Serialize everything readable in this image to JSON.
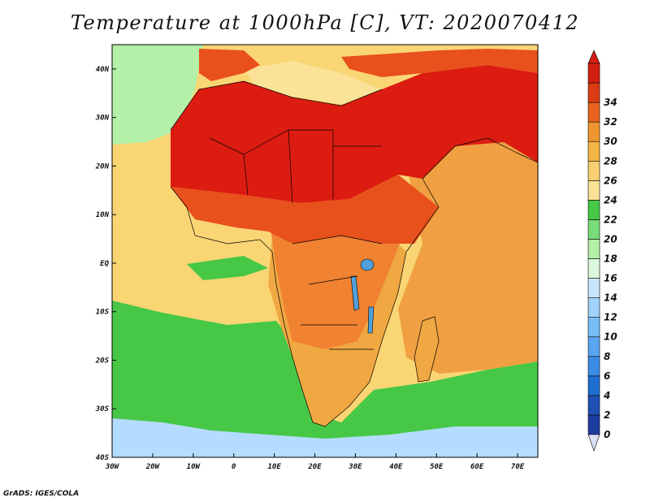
{
  "title": "Temperature at 1000hPa [C], VT: 2020070412",
  "credit": "GrADS: IGES/COLA",
  "map": {
    "lon_range": [
      -30,
      75
    ],
    "lat_range": [
      -40,
      45
    ],
    "x_ticks": [
      "30W",
      "20W",
      "10W",
      "0",
      "10E",
      "20E",
      "30E",
      "40E",
      "50E",
      "60E",
      "70E"
    ],
    "y_ticks": [
      "40N",
      "30N",
      "20N",
      "10N",
      "EQ",
      "10S",
      "20S",
      "30S",
      "40S"
    ],
    "ocean_colors": {
      "atlantic_north": "#b4f0a8",
      "atlantic_tropical": "#fad574",
      "atlantic_south": "#46c846",
      "southern_ocean": "#b4dcff",
      "indian_ocean": "#f0a042",
      "mediterranean": "#fae296"
    },
    "land_colors": {
      "sahara_arabia": "#dc1c10",
      "sahel": "#e8501c",
      "central": "#f08232",
      "southern": "#f0a842",
      "lakes": "#50a0dc"
    }
  },
  "colorbar": {
    "levels": [
      0,
      2,
      4,
      6,
      8,
      10,
      12,
      14,
      16,
      18,
      20,
      22,
      24,
      26,
      28,
      30,
      32,
      34
    ],
    "colors": [
      "#1e3ca0",
      "#1e50b4",
      "#1e6ed2",
      "#3c8ce6",
      "#5aa5f0",
      "#78bef5",
      "#a0d2fa",
      "#c8e6fa",
      "#dcf8dc",
      "#b4f0a8",
      "#78dc78",
      "#46c846",
      "#fae296",
      "#fad070",
      "#f5b446",
      "#f09630",
      "#e8641e",
      "#dc3c14",
      "#d21e10"
    ],
    "under_color": "#dce0f5"
  }
}
